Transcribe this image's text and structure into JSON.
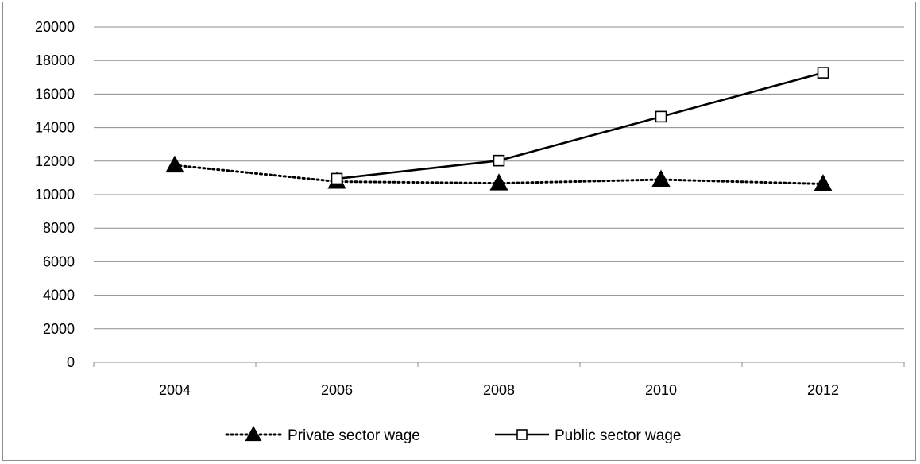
{
  "chart_data": {
    "type": "line",
    "x": [
      "2004",
      "2006",
      "2008",
      "2010",
      "2012"
    ],
    "ylim": [
      0,
      20000
    ],
    "yticks": [
      0,
      2000,
      4000,
      6000,
      8000,
      10000,
      12000,
      14000,
      16000,
      18000,
      20000
    ],
    "grid": true,
    "legend_position": "bottom",
    "series": [
      {
        "name": "Private sector wage",
        "values": [
          11750,
          10780,
          10680,
          10900,
          10640
        ],
        "line_style": "dotted",
        "marker": "filled-triangle",
        "color": "#000000"
      },
      {
        "name": "Public sector wage",
        "values": [
          null,
          10950,
          12030,
          14650,
          17270
        ],
        "line_style": "solid",
        "marker": "open-square",
        "color": "#000000"
      }
    ]
  }
}
